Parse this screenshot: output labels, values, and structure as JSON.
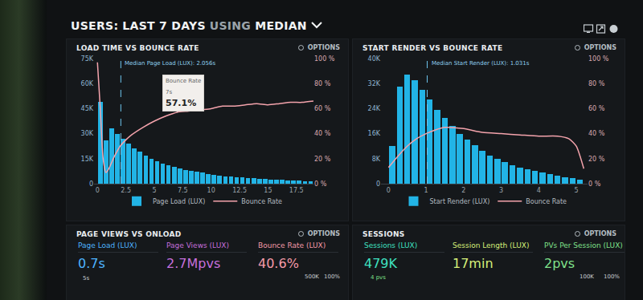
{
  "header": {
    "parts": [
      "USERS:",
      "LAST 7 DAYS",
      "USING",
      "MEDIAN"
    ]
  },
  "chart_data": [
    {
      "type": "histogram",
      "title": "LOAD TIME VS BOUNCE RATE",
      "options": "OPTIONS",
      "bins": [
        0,
        0.5,
        1,
        1.5,
        2,
        2.5,
        3,
        3.5,
        4,
        4.5,
        5,
        5.5,
        6,
        6.5,
        7,
        7.5,
        8,
        8.5,
        9,
        9.5,
        10,
        10.5,
        11,
        11.5,
        12,
        12.5,
        13,
        13.5,
        14,
        14.5,
        15,
        15.5,
        16,
        16.5,
        17,
        17.5,
        18,
        18.5,
        19
      ],
      "series": [
        {
          "name": "Page Load (LUX)",
          "type": "histogram",
          "color": "#22b4e6",
          "values": [
            49000,
            26000,
            33000,
            30000,
            27000,
            24000,
            21000,
            19000,
            17000,
            15000,
            13500,
            12000,
            11000,
            10000,
            9000,
            8000,
            7500,
            7000,
            6500,
            6000,
            5500,
            5000,
            4500,
            4200,
            4000,
            3700,
            3400,
            3200,
            3000,
            2800,
            2600,
            2400,
            2200,
            2000,
            1900,
            1800,
            1600,
            1500
          ]
        },
        {
          "name": "Bounce Rate",
          "type": "line",
          "color": "#f4a3ac",
          "axis": "y2",
          "x": [
            0,
            0.25,
            0.5,
            0.75,
            1,
            1.5,
            2,
            2.5,
            3,
            4,
            5,
            6,
            7,
            8,
            9,
            10,
            11,
            12,
            13,
            14,
            15,
            16,
            17,
            18,
            19
          ],
          "values": [
            97,
            60,
            20,
            9,
            12,
            22,
            30,
            35,
            39,
            45,
            50,
            54,
            57.1,
            58,
            59,
            60,
            62,
            62,
            63,
            64,
            63,
            64,
            65,
            65,
            66
          ]
        }
      ],
      "xlim": [
        -0.3,
        19
      ],
      "xticks": [
        0,
        2.5,
        5,
        7.5,
        10,
        12.5,
        15,
        17.5
      ],
      "ylim": [
        0,
        75000
      ],
      "yticks": [
        0,
        {
          "value": 15000,
          "label": "15K"
        },
        {
          "value": 30000,
          "label": "30K"
        },
        {
          "value": 45000,
          "label": "45K"
        },
        {
          "value": 60000,
          "label": "60K"
        },
        {
          "value": 75000,
          "label": "75K"
        }
      ],
      "y2lim": [
        0,
        100
      ],
      "y2ticks": [
        {
          "value": 0,
          "label": "0 %"
        },
        {
          "value": 20,
          "label": "20 %"
        },
        {
          "value": 40,
          "label": "40 %"
        },
        {
          "value": 60,
          "label": "60 %"
        },
        {
          "value": 80,
          "label": "80 %"
        },
        {
          "value": 100,
          "label": "100 %"
        }
      ],
      "median": {
        "value": 2.056,
        "label": "Median Page Load (LUX): 2.056s"
      },
      "annotations": [
        {
          "x": 7,
          "y": 57.1,
          "axis": "y2",
          "lines": [
            "Bounce Rate",
            "7s",
            "57.1%"
          ]
        }
      ],
      "grid": false,
      "legend": "bottom"
    },
    {
      "type": "histogram",
      "title": "START RENDER VS BOUNCE RATE",
      "options": "OPTIONS",
      "bins": [
        0,
        0.2,
        0.4,
        0.6,
        0.8,
        1,
        1.2,
        1.4,
        1.6,
        1.8,
        2,
        2.2,
        2.4,
        2.6,
        2.8,
        3,
        3.2,
        3.4,
        3.6,
        3.8,
        4,
        4.2,
        4.4,
        4.6,
        4.8,
        5,
        5.2
      ],
      "series": [
        {
          "name": "Start Render (LUX)",
          "type": "histogram",
          "color": "#22b4e6",
          "values": [
            12000,
            31000,
            35000,
            33000,
            30000,
            27000,
            23500,
            21000,
            18500,
            16000,
            14000,
            12300,
            10600,
            9000,
            7900,
            7000,
            6000,
            5200,
            4500,
            4000,
            3500,
            3000,
            2500,
            2000,
            1700,
            1200
          ]
        },
        {
          "name": "Bounce Rate",
          "type": "line",
          "color": "#f4a3ac",
          "axis": "y2",
          "x": [
            0,
            0.25,
            0.5,
            0.75,
            1,
            1.25,
            1.5,
            2,
            2.5,
            3,
            3.5,
            4,
            4.5,
            4.8,
            5,
            5.2
          ],
          "values": [
            13,
            22,
            30,
            36,
            40,
            43,
            45,
            44,
            41,
            40,
            39,
            38,
            38,
            36,
            30,
            12
          ]
        }
      ],
      "xlim": [
        -0.2,
        5.3
      ],
      "xticks": [
        0,
        1,
        2,
        3,
        4,
        5
      ],
      "ylim": [
        0,
        40000
      ],
      "yticks": [
        0,
        {
          "value": 8000,
          "label": "8K"
        },
        {
          "value": 16000,
          "label": "16K"
        },
        {
          "value": 24000,
          "label": "24K"
        },
        {
          "value": 32000,
          "label": "32K"
        },
        {
          "value": 40000,
          "label": "40K"
        }
      ],
      "y2lim": [
        0,
        100
      ],
      "y2ticks": [
        {
          "value": 0,
          "label": "0 %"
        },
        {
          "value": 20,
          "label": "20 %"
        },
        {
          "value": 40,
          "label": "40 %"
        },
        {
          "value": 60,
          "label": "60 %"
        },
        {
          "value": 80,
          "label": "80 %"
        },
        {
          "value": 100,
          "label": "100 %"
        }
      ],
      "median": {
        "value": 1.031,
        "label": "Median Start Render (LUX): 1.031s"
      },
      "annotations": [],
      "grid": false,
      "legend": "bottom"
    }
  ],
  "panels": [
    {
      "title": "PAGE VIEWS VS ONLOAD",
      "options": "OPTIONS",
      "metrics": [
        {
          "label": "Page Load (LUX)",
          "value": "0.7s",
          "color": "#4db3ff"
        },
        {
          "label": "Page Views (LUX)",
          "value": "2.7Mpvs",
          "color": "#c56fdc"
        },
        {
          "label": "Bounce Rate (LUX)",
          "value": "40.6%",
          "color": "#f49aa8"
        }
      ],
      "axis_labels": [
        "5s",
        "500K",
        "100%"
      ]
    },
    {
      "title": "SESSIONS",
      "options": "OPTIONS",
      "metrics": [
        {
          "label": "Sessions (LUX)",
          "value": "479K",
          "color": "#3fe0c0",
          "note": "4 pvs"
        },
        {
          "label": "Session Length (LUX)",
          "value": "17min",
          "color": "#d6f07a"
        },
        {
          "label": "PVs Per Session (LUX)",
          "value": "2pvs",
          "color": "#7fe08a"
        }
      ],
      "axis_labels": [
        "100K",
        "100%"
      ]
    }
  ]
}
